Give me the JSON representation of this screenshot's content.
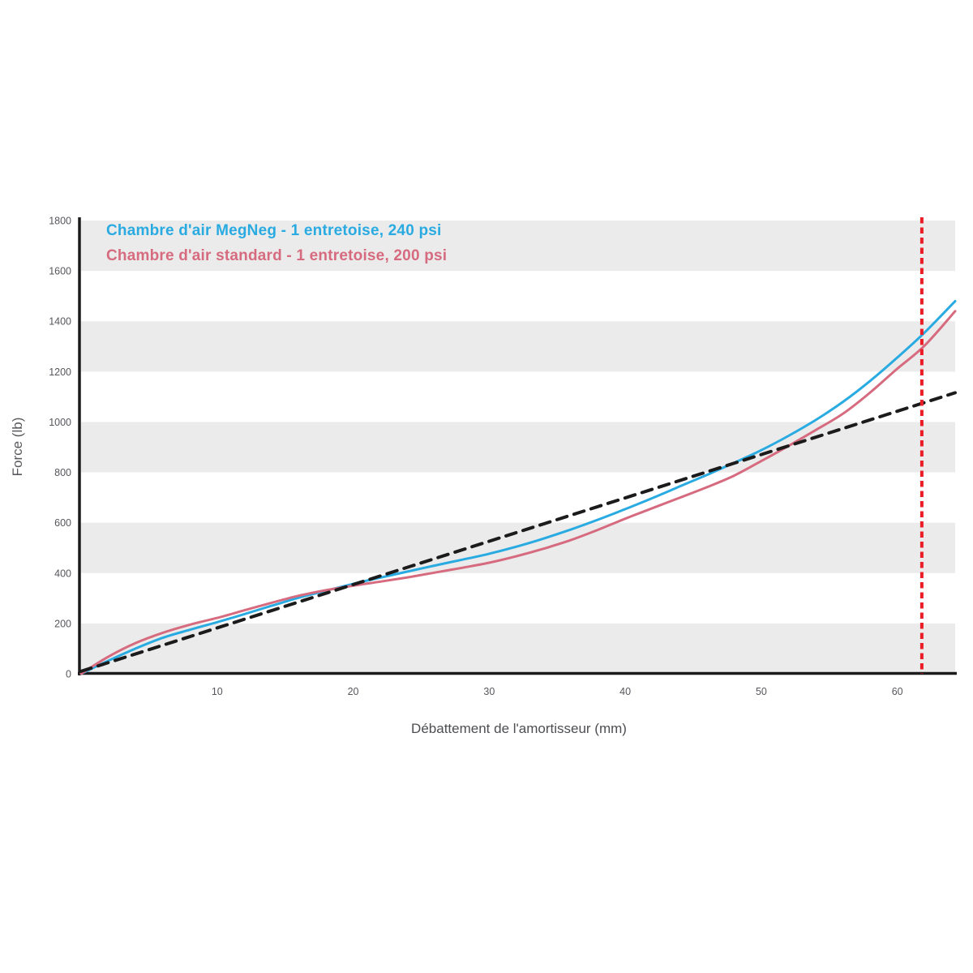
{
  "chart_data": {
    "type": "line",
    "title": "",
    "xlabel": "Débattement de l'amortisseur (mm)",
    "ylabel": "Force (lb)",
    "xlim": [
      0,
      64.25
    ],
    "ylim": [
      0,
      1800
    ],
    "x_ticks": [
      10,
      20,
      30,
      40,
      50,
      60
    ],
    "y_ticks": [
      0,
      200,
      400,
      600,
      800,
      1000,
      1200,
      1400,
      1600,
      1800
    ],
    "grid": "horizontal-bands",
    "band_color": "#ebebeb",
    "bands": [
      [
        1600,
        1800
      ],
      [
        1200,
        1400
      ],
      [
        800,
        1000
      ],
      [
        400,
        600
      ],
      [
        0,
        200
      ]
    ],
    "axis_color": "#1b1b1b",
    "tick_color": "#55565b",
    "legend_position": "top-left-inside",
    "series": [
      {
        "id": "megneg",
        "name": "Chambre d'air MegNeg - 1 entretoise, 240 psi",
        "color": "#29abe2",
        "style": "solid",
        "width": 3,
        "x": [
          0,
          2,
          4,
          6,
          8,
          10,
          12,
          14,
          16,
          18,
          20,
          22,
          24,
          26,
          28,
          30,
          32,
          34,
          36,
          38,
          40,
          42,
          44,
          46,
          48,
          50,
          52,
          54,
          56,
          58,
          60,
          62,
          64.25
        ],
        "y": [
          0,
          52,
          100,
          143,
          175,
          205,
          237,
          270,
          302,
          330,
          357,
          382,
          406,
          430,
          453,
          477,
          505,
          537,
          573,
          612,
          654,
          698,
          744,
          790,
          838,
          888,
          945,
          1008,
          1080,
          1163,
          1256,
          1355,
          1480
        ]
      },
      {
        "id": "standard",
        "name": "Chambre d'air standard - 1 entretoise, 200 psi",
        "color": "#d66b7f",
        "style": "solid",
        "width": 3,
        "x": [
          0,
          2,
          4,
          6,
          8,
          10,
          12,
          14,
          16,
          18,
          20,
          22,
          24,
          26,
          28,
          30,
          32,
          34,
          36,
          38,
          40,
          42,
          44,
          46,
          48,
          50,
          52,
          54,
          56,
          58,
          60,
          62,
          64.25
        ],
        "y": [
          0,
          68,
          122,
          163,
          195,
          222,
          252,
          282,
          310,
          332,
          350,
          366,
          383,
          402,
          421,
          441,
          467,
          497,
          531,
          572,
          616,
          658,
          699,
          741,
          787,
          845,
          905,
          968,
          1033,
          1117,
          1212,
          1303,
          1440
        ]
      },
      {
        "id": "linear-reference",
        "name": "",
        "color": "#1b1b1b",
        "style": "dashed",
        "width": 4,
        "x": [
          0,
          64.25
        ],
        "y": [
          10,
          1116
        ]
      }
    ],
    "marker_line": {
      "x": 61.8,
      "color": "#ea1c25",
      "style": "dashed",
      "width": 4
    }
  }
}
